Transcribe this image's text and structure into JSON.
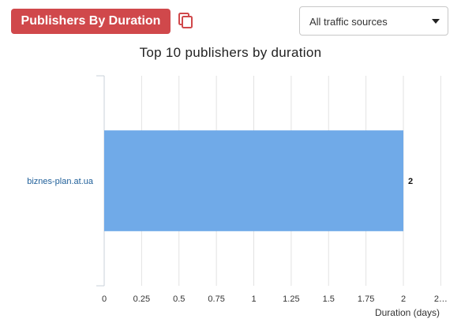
{
  "header": {
    "title_button": "Publishers By Duration",
    "copy_icon": "copy-icon",
    "traffic_select": {
      "selected": "All traffic sources"
    }
  },
  "colors": {
    "title_button_bg": "#d0484b",
    "bar": "#70aae8",
    "category_label": "#1f5f99",
    "grid": "#e2e2e2"
  },
  "chart_data": {
    "type": "bar",
    "orientation": "horizontal",
    "title": "Top 10 publishers by duration",
    "xlabel": "Duration (days)",
    "ylabel": "",
    "categories": [
      "biznes-plan.at.ua"
    ],
    "values": [
      2
    ],
    "data_labels": [
      "2"
    ],
    "x_ticks": [
      "0",
      "0.25",
      "0.5",
      "0.75",
      "1",
      "1.25",
      "1.5",
      "1.75",
      "2",
      "2…"
    ],
    "xlim": [
      0,
      2.25
    ],
    "grid": true,
    "legend": "none"
  }
}
